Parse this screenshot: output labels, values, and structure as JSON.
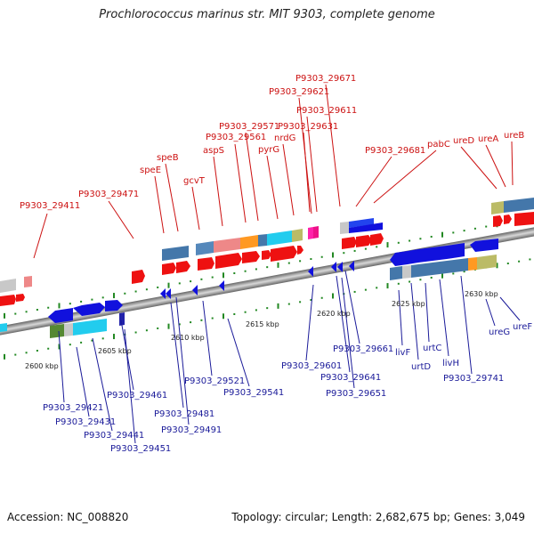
{
  "title": "Prochlorococcus marinus str. MIT 9303, complete genome",
  "footer": {
    "accession": "Accession: NC_008820",
    "stats": "Topology: circular; Length: 2,682,675 bp; Genes: 3,049"
  },
  "colors": {
    "top_label": "#cc1111",
    "bottom_label": "#1a1a99",
    "forward_gene": "#ee1111",
    "reverse_gene": "#1111dd",
    "tick": "#228822"
  },
  "scale_labels": [
    "2600 kbp",
    "2605 kbp",
    "2610 kbp",
    "2615 kbp",
    "2620 kbp",
    "2625 kbp",
    "2630 kbp"
  ],
  "top_labels": [
    "P9303_29411",
    "P9303_29471",
    "speE",
    "speB",
    "gcvT",
    "aspS",
    "P9303_29561",
    "P9303_29571",
    "pyrG",
    "nrdG",
    "P9303_29611",
    "P9303_29621",
    "P9303_29631",
    "P9303_29671",
    "P9303_29681",
    "pabC",
    "ureD",
    "ureA",
    "ureB"
  ],
  "bottom_labels": [
    "P9303_29421",
    "P9303_29431",
    "P9303_29441",
    "P9303_29451",
    "P9303_29461",
    "P9303_29481",
    "P9303_29491",
    "P9303_29521",
    "P9303_29541",
    "P9303_29601",
    "P9303_29641",
    "P9303_29651",
    "P9303_29661",
    "livF",
    "urtD",
    "urtC",
    "livH",
    "P9303_29741",
    "ureG",
    "ureF"
  ]
}
